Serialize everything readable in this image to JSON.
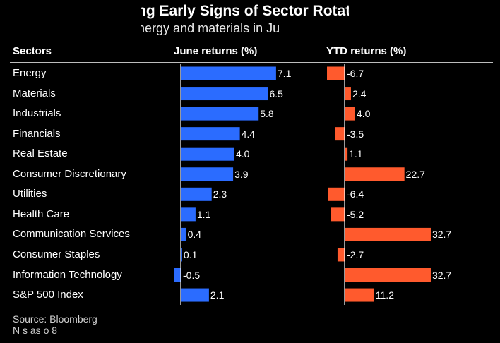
{
  "header": {
    "title": "ng Early Signs of Sector Rotat",
    "subtitle": "favor energy and materials in Ju"
  },
  "columns": {
    "sectors": "Sectors",
    "june": "June returns (%)",
    "ytd": "YTD returns (%)"
  },
  "footer": {
    "source": "Source: Bloomberg",
    "note": "N          s as o       8"
  },
  "colors": {
    "june": "#2b6cff",
    "ytd": "#ff5a2d",
    "axis": "#ffffff"
  },
  "chart_data": [
    {
      "type": "bar",
      "orientation": "horizontal",
      "xlabel": "June returns (%)",
      "categories": [
        "Energy",
        "Materials",
        "Industrials",
        "Financials",
        "Real Estate",
        "Consumer Discretionary",
        "Utilities",
        "Health Care",
        "Communication Services",
        "Consumer Staples",
        "Information Technology",
        "S&P 500 Index"
      ],
      "values": [
        7.1,
        6.5,
        5.8,
        4.4,
        4.0,
        3.9,
        2.3,
        1.1,
        0.4,
        0.1,
        -0.5,
        2.1
      ],
      "labels": [
        "7.1",
        "6.5",
        "5.8",
        "4.4",
        "4.0",
        "3.9",
        "2.3",
        "1.1",
        "0.4",
        "0.1",
        "-0.5",
        "2.1"
      ]
    },
    {
      "type": "bar",
      "orientation": "horizontal",
      "xlabel": "YTD returns (%)",
      "categories": [
        "Energy",
        "Materials",
        "Industrials",
        "Financials",
        "Real Estate",
        "Consumer Discretionary",
        "Utilities",
        "Health Care",
        "Communication Services",
        "Consumer Staples",
        "Information Technology",
        "S&P 500 Index"
      ],
      "values": [
        -6.7,
        2.4,
        4.0,
        -3.5,
        1.1,
        22.7,
        -6.4,
        -5.2,
        32.7,
        -2.7,
        32.7,
        11.2
      ],
      "labels": [
        "-6.7",
        "2.4",
        "4.0",
        "-3.5",
        "1.1",
        "22.7",
        "-6.4",
        "-5.2",
        "32.7",
        "-2.7",
        "32.7",
        "11.2"
      ]
    }
  ]
}
